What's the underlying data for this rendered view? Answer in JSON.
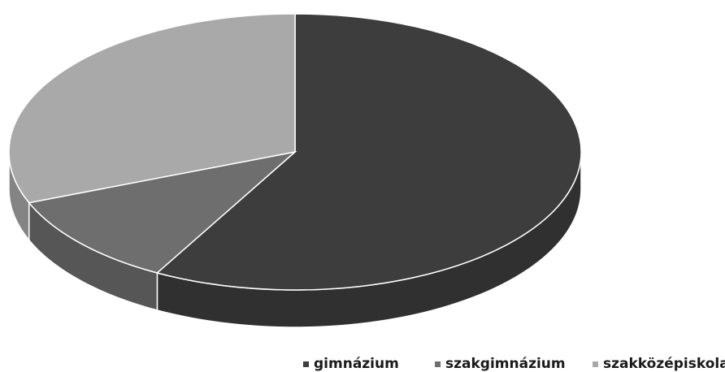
{
  "chart_data": {
    "type": "pie",
    "title": "",
    "style": "3d",
    "categories": [
      "gimnázium",
      "szakgimnázium",
      "szakközépiskola"
    ],
    "values": [
      58,
      11,
      31
    ],
    "colors": [
      "#3d3d3d",
      "#6e6e6e",
      "#a9a9a9"
    ],
    "legend": {
      "position": "bottom",
      "entries": [
        "gimnázium",
        "szakgimnázium",
        "szakközépiskola"
      ]
    }
  }
}
